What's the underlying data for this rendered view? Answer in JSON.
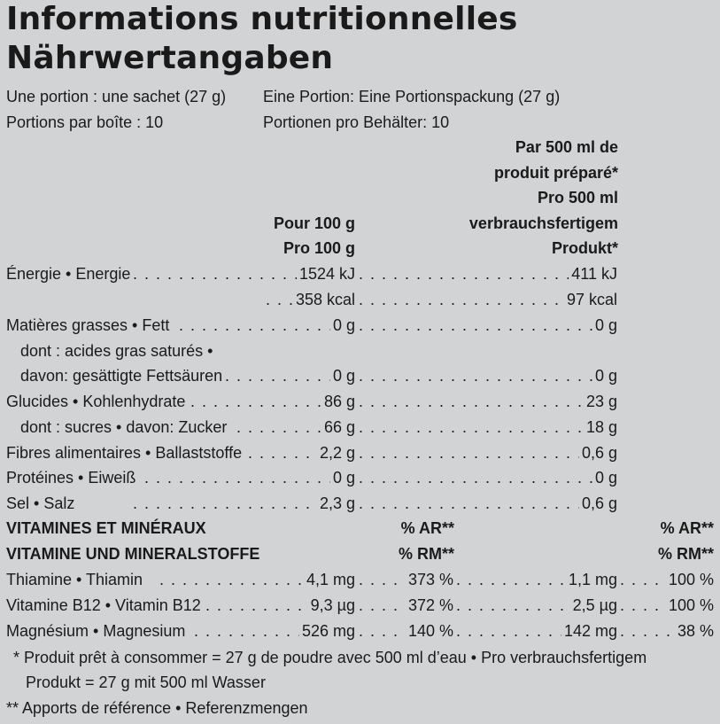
{
  "title": {
    "line1": "Informations nutritionnelles",
    "line2": "Nährwertangaben"
  },
  "serving": {
    "fr_size": "Une portion : une sachet (27 g)",
    "de_size": "Eine Portion: Eine Portionspackung (27 g)",
    "fr_count": "Portions par boîte : 10",
    "de_count": "Portionen pro Behälter: 10"
  },
  "columns": {
    "per100_fr": "Pour 100 g",
    "per100_de": "Pro 100 g",
    "per500": [
      "Par 500 ml de",
      "produit préparé*",
      "Pro 500 ml",
      "verbrauchsfertigem",
      "Produkt*"
    ]
  },
  "nutrients": [
    {
      "label": "Énergie • Energie",
      "v100": "1524 kJ",
      "v500": "411 kJ"
    },
    {
      "label": "",
      "v100": "358 kcal",
      "v500": "97 kcal"
    },
    {
      "label": "Matières grasses • Fett",
      "v100": "0 g",
      "v500": "0 g"
    },
    {
      "label": "dont : acides gras saturés •",
      "v100": "",
      "v500": ""
    },
    {
      "label": "davon: gesättigte Fettsäuren",
      "v100": "0 g",
      "v500": "0 g"
    },
    {
      "label": "Glucides • Kohlenhydrate",
      "v100": "86 g",
      "v500": "23 g"
    },
    {
      "label": "dont : sucres • davon: Zucker",
      "v100": "66 g",
      "v500": "18 g"
    },
    {
      "label": "Fibres alimentaires • Ballaststoffe",
      "v100": "2,2 g",
      "v500": "0,6 g"
    },
    {
      "label": "Protéines • Eiweiß",
      "v100": "0 g",
      "v500": "0 g"
    },
    {
      "label": "Sel • Salz",
      "v100": "2,3 g",
      "v500": "0,6 g"
    }
  ],
  "vitamins_header": {
    "fr": "VITAMINES ET MINÉRAUX",
    "de": "VITAMINE UND MINERALSTOFFE",
    "ar": "% AR**",
    "rm": "% RM**"
  },
  "vitamins": [
    {
      "label": "Thiamine • Thiamin",
      "amt100": "4,1 mg",
      "pct100": "373 %",
      "amt500": "1,1 mg",
      "pct500": "100 %"
    },
    {
      "label": "Vitamine B12 • Vitamin B12",
      "amt100": "9,3 µg",
      "pct100": "372 %",
      "amt500": "2,5 µg",
      "pct500": "100 %"
    },
    {
      "label": "Magnésium • Magnesium",
      "amt100": "526 mg",
      "pct100": "140 %",
      "amt500": "142 mg",
      "pct500": "38 %"
    }
  ],
  "footnotes": {
    "star_line1": "* Produit prêt à consommer = 27 g de poudre avec 500 ml d’eau • Pro verbrauchsfertigem",
    "star_line2": "Produkt = 27 g mit 500 ml Wasser",
    "double_star": "** Apports de référence • Referenzmengen"
  }
}
